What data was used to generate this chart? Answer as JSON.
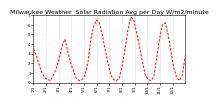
{
  "title": "Milwaukee Weather  Solar Radiation Avg per Day W/m2/minute",
  "line_color": "#FF0000",
  "background_color": "#FFFFFF",
  "grid_color": "#AAAAAA",
  "y_values": [
    3.5,
    2.8,
    1.8,
    1.0,
    0.5,
    0.3,
    0.2,
    0.8,
    1.5,
    2.5,
    3.8,
    4.5,
    3.2,
    2.0,
    1.2,
    0.4,
    0.2,
    0.3,
    0.8,
    2.0,
    4.5,
    5.8,
    6.5,
    6.2,
    5.0,
    3.5,
    2.0,
    0.8,
    0.3,
    0.2,
    0.5,
    1.8,
    3.5,
    5.5,
    6.8,
    6.5,
    5.2,
    3.8,
    2.2,
    0.8,
    0.3,
    0.2,
    0.6,
    2.5,
    4.5,
    6.0,
    6.2,
    5.0,
    3.2,
    1.5,
    0.5,
    0.2,
    0.8,
    2.8
  ],
  "ylim": [
    0,
    7
  ],
  "ytick_labels": [
    "0",
    "1",
    "2",
    "3",
    "4",
    "5",
    "6",
    "7"
  ],
  "ytick_values": [
    0,
    1,
    2,
    3,
    4,
    5,
    6,
    7
  ],
  "x_labels": [
    "1/1",
    "2/1",
    "3/1",
    "4/1",
    "5/1",
    "6/1",
    "7/1",
    "8/1",
    "9/1",
    "10/1",
    "11/1",
    "12/1"
  ],
  "title_fontsize": 4.5,
  "tick_fontsize": 3.0
}
